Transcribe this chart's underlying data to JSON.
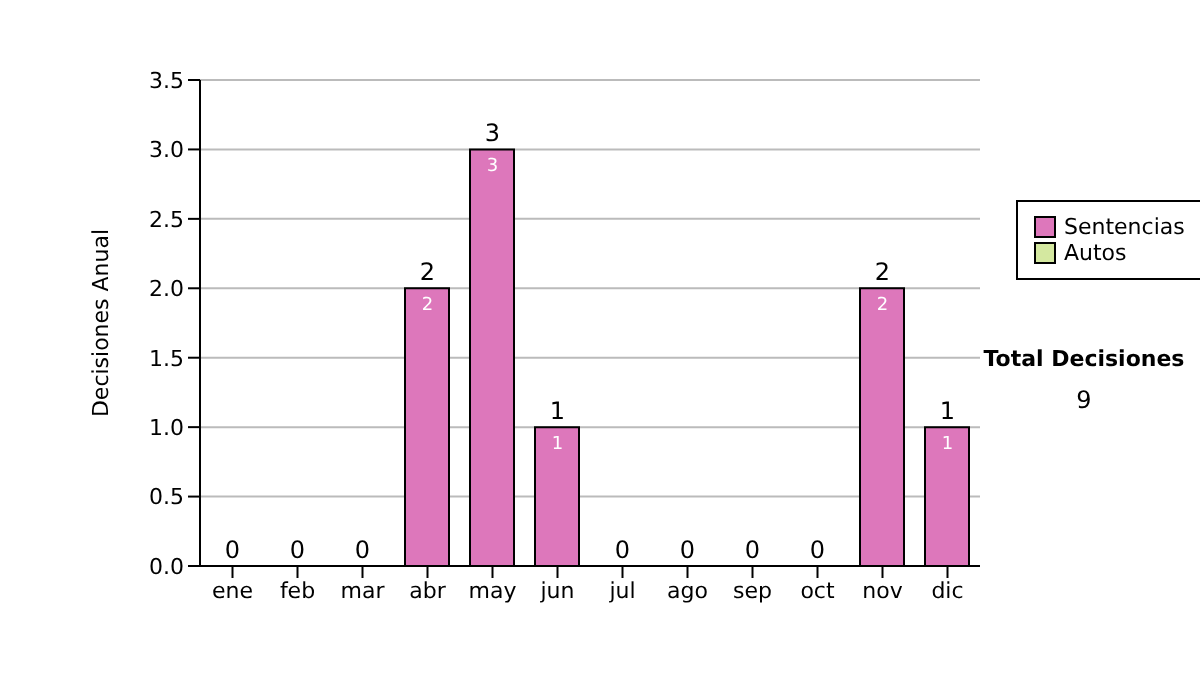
{
  "chart_data": {
    "type": "bar",
    "ylabel": "Decisiones Anual",
    "categories": [
      "ene",
      "feb",
      "mar",
      "abr",
      "may",
      "jun",
      "jul",
      "ago",
      "sep",
      "oct",
      "nov",
      "dic"
    ],
    "series": [
      {
        "name": "Sentencias",
        "color": "#dd77bb",
        "values": [
          0,
          0,
          0,
          2,
          3,
          1,
          0,
          0,
          0,
          0,
          2,
          1
        ],
        "value_labels": [
          null,
          null,
          null,
          "2",
          "3",
          "1",
          null,
          null,
          null,
          null,
          "2",
          "1"
        ]
      },
      {
        "name": "Autos",
        "color": "#d4e8a0",
        "values": [
          0,
          0,
          0,
          0,
          0,
          0,
          0,
          0,
          0,
          0,
          0,
          0
        ]
      }
    ],
    "stacked": true,
    "totals": [
      "0",
      "0",
      "0",
      "2",
      "3",
      "1",
      "0",
      "0",
      "0",
      "0",
      "2",
      "1"
    ],
    "ylim": [
      0,
      3.5
    ],
    "yticks": [
      {
        "value": 0,
        "label": "0.0"
      },
      {
        "value": 0.5,
        "label": "0.5"
      },
      {
        "value": 1,
        "label": "1.0"
      },
      {
        "value": 1.5,
        "label": "1.5"
      },
      {
        "value": 2,
        "label": "2.0"
      },
      {
        "value": 2.5,
        "label": "2.5"
      },
      {
        "value": 3,
        "label": "3.0"
      },
      {
        "value": 3.5,
        "label": "3.5"
      }
    ],
    "grid": "y",
    "legend": "right",
    "annotations": [
      "Total Decisiones",
      "9"
    ]
  }
}
